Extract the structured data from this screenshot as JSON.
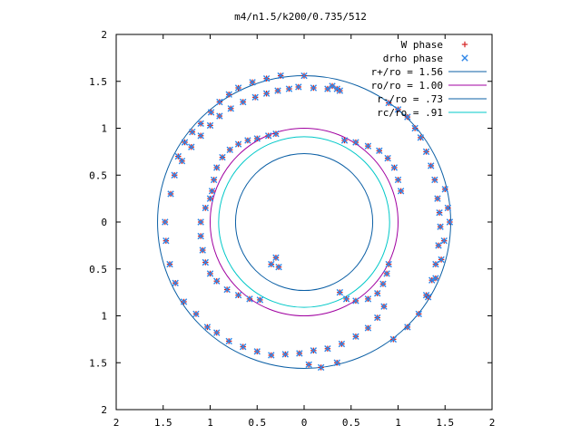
{
  "chart_data": {
    "type": "scatter",
    "title": "m4/n1.5/k200/0.735/512",
    "xlim": [
      -2,
      2
    ],
    "ylim": [
      -2,
      2
    ],
    "x_ticks": [
      {
        "value": -2,
        "label": "2"
      },
      {
        "value": -1.5,
        "label": "1.5"
      },
      {
        "value": -1,
        "label": "1"
      },
      {
        "value": -0.5,
        "label": "0.5"
      },
      {
        "value": 0,
        "label": "0"
      },
      {
        "value": 0.5,
        "label": "0.5"
      },
      {
        "value": 1,
        "label": "1"
      },
      {
        "value": 1.5,
        "label": "1.5"
      },
      {
        "value": 2,
        "label": "2"
      }
    ],
    "y_ticks": [
      {
        "value": 2,
        "label": "2"
      },
      {
        "value": 1.5,
        "label": "1.5"
      },
      {
        "value": 1,
        "label": "1"
      },
      {
        "value": 0.5,
        "label": "0.5"
      },
      {
        "value": 0,
        "label": "0"
      },
      {
        "value": -0.5,
        "label": "0.5"
      },
      {
        "value": -1,
        "label": "1"
      },
      {
        "value": -1.5,
        "label": "1.5"
      },
      {
        "value": -2,
        "label": "2"
      }
    ],
    "legend_placement": "top-right",
    "circles": [
      {
        "name": "r+/ro = 1.56",
        "radius": 1.56,
        "color": "#0b5fa5"
      },
      {
        "name": "ro/ro = 1.00",
        "radius": 1.0,
        "color": "#a000a0"
      },
      {
        "name": "r-/ro = .73",
        "radius": 0.73,
        "color": "#0b5fa5"
      },
      {
        "name": "rc/ro = .91",
        "radius": 0.91,
        "color": "#00c8c8"
      }
    ],
    "series": [
      {
        "name": "W phase",
        "marker": "+",
        "color": "#d42020",
        "points": [
          [
            -0.98,
            0.33
          ],
          [
            -0.96,
            0.45
          ],
          [
            -0.93,
            0.58
          ],
          [
            -0.87,
            0.69
          ],
          [
            -0.79,
            0.77
          ],
          [
            -0.7,
            0.83
          ],
          [
            -0.6,
            0.87
          ],
          [
            -0.5,
            0.89
          ],
          [
            -0.38,
            0.92
          ],
          [
            -0.3,
            0.94
          ],
          [
            -1.3,
            0.65
          ],
          [
            -1.2,
            0.8
          ],
          [
            -1.1,
            0.92
          ],
          [
            -1.0,
            1.03
          ],
          [
            -0.9,
            1.13
          ],
          [
            -0.78,
            1.21
          ],
          [
            -0.65,
            1.28
          ],
          [
            -0.52,
            1.33
          ],
          [
            -0.4,
            1.37
          ],
          [
            -0.28,
            1.4
          ],
          [
            -0.16,
            1.42
          ],
          [
            -0.06,
            1.44
          ],
          [
            0.1,
            1.43
          ],
          [
            0.25,
            1.42
          ],
          [
            0.38,
            1.4
          ],
          [
            -1.42,
            0.3
          ],
          [
            -1.38,
            0.5
          ],
          [
            -1.34,
            0.7
          ],
          [
            -1.27,
            0.85
          ],
          [
            -1.19,
            0.96
          ],
          [
            -1.1,
            1.05
          ],
          [
            -0.99,
            1.17
          ],
          [
            -0.9,
            1.28
          ],
          [
            -0.8,
            1.36
          ],
          [
            -0.7,
            1.43
          ],
          [
            -0.55,
            1.49
          ],
          [
            -0.4,
            1.53
          ],
          [
            -0.25,
            1.56
          ],
          [
            0.0,
            1.56
          ],
          [
            0.43,
            0.87
          ],
          [
            0.55,
            0.85
          ],
          [
            0.68,
            0.81
          ],
          [
            0.8,
            0.76
          ],
          [
            0.89,
            0.68
          ],
          [
            0.96,
            0.58
          ],
          [
            1.0,
            0.45
          ],
          [
            1.03,
            0.33
          ],
          [
            0.9,
            1.27
          ],
          [
            1.0,
            1.2
          ],
          [
            1.1,
            1.12
          ],
          [
            1.18,
            1.0
          ],
          [
            1.24,
            0.9
          ],
          [
            1.3,
            0.75
          ],
          [
            1.35,
            0.6
          ],
          [
            1.39,
            0.45
          ],
          [
            1.42,
            0.25
          ],
          [
            1.44,
            0.1
          ],
          [
            1.45,
            -0.05
          ],
          [
            1.43,
            -0.25
          ],
          [
            1.4,
            -0.45
          ],
          [
            1.36,
            -0.62
          ],
          [
            1.3,
            -0.78
          ],
          [
            1.55,
            0.0
          ],
          [
            1.53,
            0.15
          ],
          [
            1.5,
            0.35
          ],
          [
            1.49,
            -0.2
          ],
          [
            1.46,
            -0.4
          ],
          [
            1.4,
            -0.6
          ],
          [
            1.32,
            -0.8
          ],
          [
            1.22,
            -0.98
          ],
          [
            1.1,
            -1.12
          ],
          [
            0.95,
            -1.25
          ],
          [
            0.38,
            -0.75
          ],
          [
            0.45,
            -0.82
          ],
          [
            0.55,
            -0.84
          ],
          [
            0.68,
            -0.82
          ],
          [
            0.78,
            -0.76
          ],
          [
            0.84,
            -0.66
          ],
          [
            0.88,
            -0.55
          ],
          [
            0.9,
            -0.45
          ],
          [
            0.85,
            -0.9
          ],
          [
            0.78,
            -1.02
          ],
          [
            0.68,
            -1.13
          ],
          [
            0.55,
            -1.22
          ],
          [
            0.4,
            -1.3
          ],
          [
            0.25,
            -1.35
          ],
          [
            0.1,
            -1.37
          ],
          [
            -0.05,
            -1.4
          ],
          [
            -0.2,
            -1.41
          ],
          [
            -0.35,
            -1.42
          ],
          [
            -0.5,
            -1.38
          ],
          [
            -0.65,
            -1.33
          ],
          [
            -0.8,
            -1.27
          ],
          [
            -0.93,
            -1.18
          ],
          [
            -1.03,
            -1.12
          ],
          [
            -1.15,
            -0.98
          ],
          [
            -1.28,
            -0.85
          ],
          [
            -1.37,
            -0.65
          ],
          [
            -1.43,
            -0.45
          ],
          [
            -1.47,
            -0.2
          ],
          [
            -1.48,
            0.0
          ],
          [
            -0.47,
            -0.83
          ],
          [
            -0.58,
            -0.82
          ],
          [
            -0.7,
            -0.78
          ],
          [
            -0.82,
            -0.72
          ],
          [
            -0.93,
            -0.63
          ],
          [
            -1.0,
            -0.55
          ],
          [
            -1.05,
            -0.43
          ],
          [
            -1.08,
            -0.3
          ],
          [
            -1.1,
            -0.15
          ],
          [
            -1.1,
            0.0
          ],
          [
            -1.05,
            0.15
          ],
          [
            -1.0,
            0.25
          ],
          [
            -0.35,
            -0.45
          ],
          [
            -0.3,
            -0.38
          ],
          [
            -0.27,
            -0.48
          ],
          [
            0.3,
            1.45
          ],
          [
            0.35,
            1.42
          ],
          [
            0.18,
            -1.55
          ],
          [
            0.05,
            -1.52
          ],
          [
            0.35,
            -1.5
          ]
        ]
      },
      {
        "name": "drho phase",
        "marker": "x",
        "color": "#2f86e8",
        "points": [
          [
            -0.98,
            0.33
          ],
          [
            -0.96,
            0.45
          ],
          [
            -0.93,
            0.58
          ],
          [
            -0.87,
            0.69
          ],
          [
            -0.79,
            0.77
          ],
          [
            -0.7,
            0.83
          ],
          [
            -0.6,
            0.87
          ],
          [
            -0.5,
            0.89
          ],
          [
            -0.38,
            0.92
          ],
          [
            -0.3,
            0.94
          ],
          [
            -1.3,
            0.65
          ],
          [
            -1.2,
            0.8
          ],
          [
            -1.1,
            0.92
          ],
          [
            -1.0,
            1.03
          ],
          [
            -0.9,
            1.13
          ],
          [
            -0.78,
            1.21
          ],
          [
            -0.65,
            1.28
          ],
          [
            -0.52,
            1.33
          ],
          [
            -0.4,
            1.37
          ],
          [
            -0.28,
            1.4
          ],
          [
            -0.16,
            1.42
          ],
          [
            -0.06,
            1.44
          ],
          [
            0.1,
            1.43
          ],
          [
            0.25,
            1.42
          ],
          [
            0.38,
            1.4
          ],
          [
            -1.42,
            0.3
          ],
          [
            -1.38,
            0.5
          ],
          [
            -1.34,
            0.7
          ],
          [
            -1.27,
            0.85
          ],
          [
            -1.19,
            0.96
          ],
          [
            -1.1,
            1.05
          ],
          [
            -0.99,
            1.17
          ],
          [
            -0.9,
            1.28
          ],
          [
            -0.8,
            1.36
          ],
          [
            -0.7,
            1.43
          ],
          [
            -0.55,
            1.49
          ],
          [
            -0.4,
            1.53
          ],
          [
            -0.25,
            1.56
          ],
          [
            0.0,
            1.56
          ],
          [
            0.43,
            0.87
          ],
          [
            0.55,
            0.85
          ],
          [
            0.68,
            0.81
          ],
          [
            0.8,
            0.76
          ],
          [
            0.89,
            0.68
          ],
          [
            0.96,
            0.58
          ],
          [
            1.0,
            0.45
          ],
          [
            1.03,
            0.33
          ],
          [
            0.9,
            1.27
          ],
          [
            1.0,
            1.2
          ],
          [
            1.1,
            1.12
          ],
          [
            1.18,
            1.0
          ],
          [
            1.24,
            0.9
          ],
          [
            1.3,
            0.75
          ],
          [
            1.35,
            0.6
          ],
          [
            1.39,
            0.45
          ],
          [
            1.42,
            0.25
          ],
          [
            1.44,
            0.1
          ],
          [
            1.45,
            -0.05
          ],
          [
            1.43,
            -0.25
          ],
          [
            1.4,
            -0.45
          ],
          [
            1.36,
            -0.62
          ],
          [
            1.3,
            -0.78
          ],
          [
            1.55,
            0.0
          ],
          [
            1.53,
            0.15
          ],
          [
            1.5,
            0.35
          ],
          [
            1.49,
            -0.2
          ],
          [
            1.46,
            -0.4
          ],
          [
            1.4,
            -0.6
          ],
          [
            1.32,
            -0.8
          ],
          [
            1.22,
            -0.98
          ],
          [
            1.1,
            -1.12
          ],
          [
            0.95,
            -1.25
          ],
          [
            0.38,
            -0.75
          ],
          [
            0.45,
            -0.82
          ],
          [
            0.55,
            -0.84
          ],
          [
            0.68,
            -0.82
          ],
          [
            0.78,
            -0.76
          ],
          [
            0.84,
            -0.66
          ],
          [
            0.88,
            -0.55
          ],
          [
            0.9,
            -0.45
          ],
          [
            0.85,
            -0.9
          ],
          [
            0.78,
            -1.02
          ],
          [
            0.68,
            -1.13
          ],
          [
            0.55,
            -1.22
          ],
          [
            0.4,
            -1.3
          ],
          [
            0.25,
            -1.35
          ],
          [
            0.1,
            -1.37
          ],
          [
            -0.05,
            -1.4
          ],
          [
            -0.2,
            -1.41
          ],
          [
            -0.35,
            -1.42
          ],
          [
            -0.5,
            -1.38
          ],
          [
            -0.65,
            -1.33
          ],
          [
            -0.8,
            -1.27
          ],
          [
            -0.93,
            -1.18
          ],
          [
            -1.03,
            -1.12
          ],
          [
            -1.15,
            -0.98
          ],
          [
            -1.28,
            -0.85
          ],
          [
            -1.37,
            -0.65
          ],
          [
            -1.43,
            -0.45
          ],
          [
            -1.47,
            -0.2
          ],
          [
            -1.48,
            0.0
          ],
          [
            -0.47,
            -0.83
          ],
          [
            -0.58,
            -0.82
          ],
          [
            -0.7,
            -0.78
          ],
          [
            -0.82,
            -0.72
          ],
          [
            -0.93,
            -0.63
          ],
          [
            -1.0,
            -0.55
          ],
          [
            -1.05,
            -0.43
          ],
          [
            -1.08,
            -0.3
          ],
          [
            -1.1,
            -0.15
          ],
          [
            -1.1,
            0.0
          ],
          [
            -1.05,
            0.15
          ],
          [
            -1.0,
            0.25
          ],
          [
            -0.35,
            -0.45
          ],
          [
            -0.3,
            -0.38
          ],
          [
            -0.27,
            -0.48
          ],
          [
            0.3,
            1.45
          ],
          [
            0.35,
            1.42
          ],
          [
            0.18,
            -1.55
          ],
          [
            0.05,
            -1.52
          ],
          [
            0.35,
            -1.5
          ]
        ]
      }
    ]
  }
}
